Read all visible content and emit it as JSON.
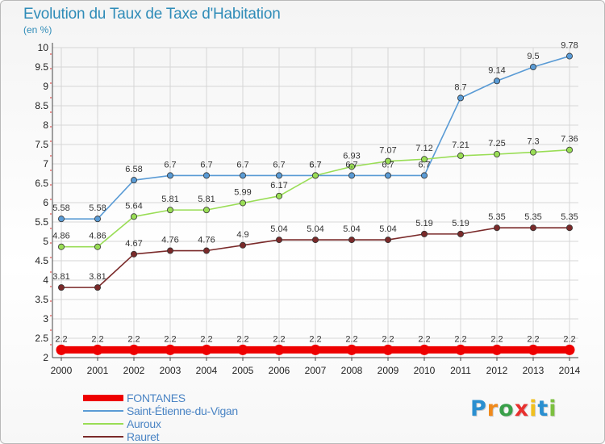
{
  "title": "Evolution du Taux de Taxe d'Habitation",
  "unit": "(en %)",
  "logo": "Proxiti",
  "chart_data": {
    "type": "line",
    "x": [
      2000,
      2001,
      2002,
      2003,
      2004,
      2005,
      2006,
      2007,
      2008,
      2009,
      2010,
      2011,
      2012,
      2013,
      2014
    ],
    "ylim": [
      2,
      10
    ],
    "yticks": [
      2,
      2.5,
      3,
      3.5,
      4,
      4.5,
      5,
      5.5,
      6,
      6.5,
      7,
      7.5,
      8,
      8.5,
      9,
      9.5,
      10
    ],
    "ytick_labels": [
      "2",
      "2.5",
      "3",
      "3.5",
      "4",
      "4.5",
      "5",
      "5.5",
      "6",
      "6.5",
      "7",
      "7.5",
      "8",
      "8.5",
      "9",
      "9.5",
      "10"
    ],
    "grid": true,
    "legend_position": "bottom-left",
    "series": [
      {
        "name": "FONTANES",
        "color": "#ee0000",
        "values": [
          2.2,
          2.2,
          2.2,
          2.2,
          2.2,
          2.2,
          2.2,
          2.2,
          2.2,
          2.2,
          2.2,
          2.2,
          2.2,
          2.2,
          2.2
        ],
        "labels": [
          "2.2",
          "2.2",
          "2.2",
          "2.2",
          "2.2",
          "2.2",
          "2.2",
          "2.2",
          "2.2",
          "2.2",
          "2.2",
          "2.2",
          "2.2",
          "2.2",
          "2.2"
        ]
      },
      {
        "name": "Saint-Étienne-du-Vigan",
        "color": "#5a9bd5",
        "values": [
          5.58,
          5.58,
          6.58,
          6.7,
          6.7,
          6.7,
          6.7,
          6.7,
          6.7,
          6.7,
          6.7,
          8.7,
          9.14,
          9.5,
          9.78
        ],
        "labels": [
          "5.58",
          "5.58",
          "6.58",
          "6.7",
          "6.7",
          "6.7",
          "6.7",
          "6.7",
          "6.7",
          "6.7",
          "6.7",
          "8.7",
          "9.14",
          "9.5",
          "9.78"
        ]
      },
      {
        "name": "Auroux",
        "color": "#99dd55",
        "values": [
          4.86,
          4.86,
          5.64,
          5.81,
          5.81,
          5.99,
          6.17,
          6.7,
          6.93,
          7.07,
          7.12,
          7.21,
          7.25,
          7.3,
          7.36
        ],
        "labels": [
          "4.86",
          "4.86",
          "5.64",
          "5.81",
          "5.81",
          "5.99",
          "6.17",
          "6.7",
          "6.93",
          "7.07",
          "7.12",
          "7.21",
          "7.25",
          "7.3",
          "7.36"
        ]
      },
      {
        "name": "Rauret",
        "color": "#7a2a2a",
        "values": [
          3.81,
          3.81,
          4.67,
          4.76,
          4.76,
          4.9,
          5.04,
          5.04,
          5.04,
          5.04,
          5.19,
          5.19,
          5.35,
          5.35,
          5.35
        ],
        "labels": [
          "3.81",
          "3.81",
          "4.67",
          "4.76",
          "4.76",
          "4.9",
          "5.04",
          "5.04",
          "5.04",
          "5.04",
          "5.19",
          "5.19",
          "5.35",
          "5.35",
          "5.35"
        ]
      }
    ]
  }
}
